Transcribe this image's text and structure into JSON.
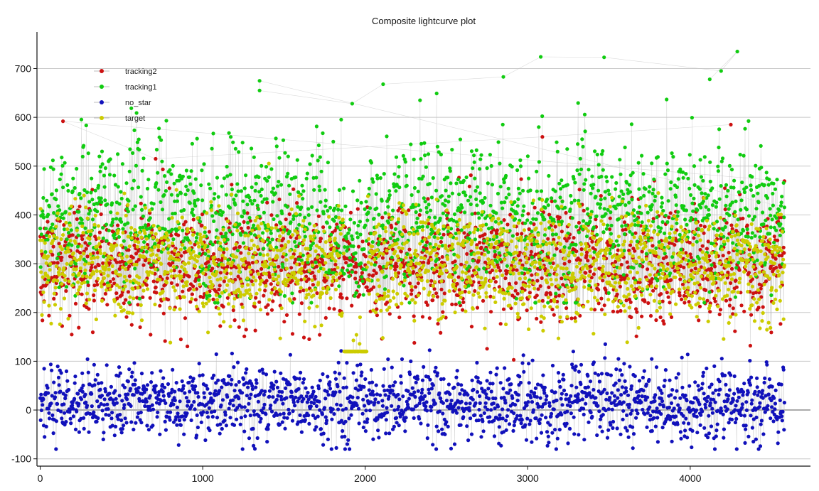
{
  "chart_data": {
    "type": "scatter",
    "title": "Composite lightcurve plot",
    "xlabel": "",
    "ylabel": "",
    "xlim": [
      -20,
      4740
    ],
    "ylim": [
      -115,
      775
    ],
    "x_ticks": [
      0,
      1000,
      2000,
      3000,
      4000
    ],
    "y_ticks": [
      -100,
      0,
      100,
      200,
      300,
      400,
      500,
      600,
      700
    ],
    "grid": "horizontal",
    "legend_position": "top-left",
    "x_range": [
      0,
      4580
    ],
    "series": [
      {
        "name": "tracking2",
        "color": "#cc1111",
        "center": 300,
        "spread": 60,
        "min": 100,
        "max": 595
      },
      {
        "name": "tracking1",
        "color": "#11cc11",
        "center": 400,
        "spread": 75,
        "min": 220,
        "max": 735
      },
      {
        "name": "no_star",
        "color": "#1111bb",
        "center": 15,
        "spread": 38,
        "min": -80,
        "max": 135
      },
      {
        "name": "target",
        "color": "#cccc00",
        "center": 300,
        "spread": 55,
        "min": 120,
        "max": 520
      }
    ],
    "notable_points": {
      "tracking1_peaks": [
        [
          1350,
          675
        ],
        [
          1350,
          655
        ],
        [
          1920,
          628
        ],
        [
          2110,
          668
        ],
        [
          2850,
          683
        ],
        [
          3080,
          724
        ],
        [
          3470,
          723
        ],
        [
          4190,
          695
        ],
        [
          4290,
          735
        ],
        [
          4120,
          678
        ]
      ],
      "tracking2_peaks": [
        [
          140,
          592
        ],
        [
          710,
          515
        ],
        [
          3090,
          560
        ],
        [
          4250,
          585
        ]
      ]
    }
  }
}
